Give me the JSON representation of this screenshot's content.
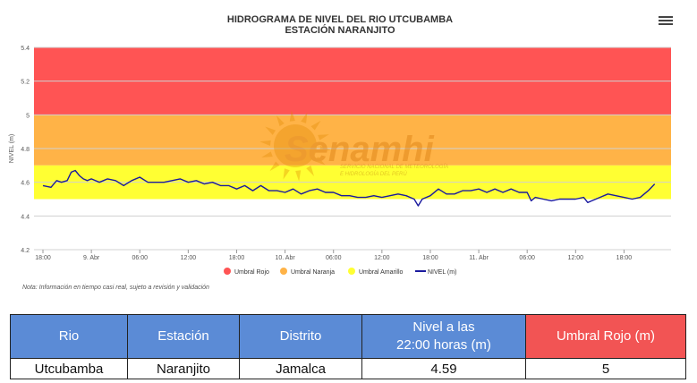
{
  "chart_data": {
    "type": "line",
    "title": "HIDROGRAMA DE NIVEL DEL RIO UTCUBAMBA",
    "subtitle": "ESTACIÓN NARANJITO",
    "ylabel": "NIVEL (m)",
    "xlabel": "",
    "ylim": [
      4.2,
      5.4
    ],
    "yticks": [
      "4.2",
      "4.4",
      "4.6",
      "4.8",
      "5",
      "5.2",
      "5.4"
    ],
    "xticks": [
      {
        "label": "18:00",
        "hour": 0
      },
      {
        "label": "9. Abr",
        "hour": 6
      },
      {
        "label": "06:00",
        "hour": 12
      },
      {
        "label": "12:00",
        "hour": 18
      },
      {
        "label": "18:00",
        "hour": 24
      },
      {
        "label": "10. Abr",
        "hour": 30
      },
      {
        "label": "06:00",
        "hour": 36
      },
      {
        "label": "12:00",
        "hour": 42
      },
      {
        "label": "18:00",
        "hour": 48
      },
      {
        "label": "11. Abr",
        "hour": 54
      },
      {
        "label": "06:00",
        "hour": 60
      },
      {
        "label": "12:00",
        "hour": 66
      },
      {
        "label": "18:00",
        "hour": 72
      }
    ],
    "x_axis_max_hour": 78,
    "bands": [
      {
        "name": "Umbral Rojo",
        "from": 5.0,
        "to": 5.4,
        "color": "#ff5454"
      },
      {
        "name": "Umbral Naranja",
        "from": 4.7,
        "to": 5.0,
        "color": "#ffb347"
      },
      {
        "name": "Umbral Amarillo",
        "from": 4.5,
        "to": 4.7,
        "color": "#ffff33"
      }
    ],
    "series": [
      {
        "name": "NIVEL (m)",
        "color": "#1a1a9e",
        "x": [
          0,
          1,
          1.7,
          2.3,
          3,
          3.5,
          4,
          4.5,
          5,
          5.5,
          6,
          7,
          7.5,
          8,
          9,
          10,
          11,
          12,
          13,
          14,
          15,
          16,
          17,
          18,
          19,
          20,
          21,
          22,
          23,
          24,
          25,
          26,
          27,
          28,
          29,
          30,
          31,
          32,
          33,
          34,
          35,
          36,
          37,
          38,
          39,
          40,
          41,
          42,
          43,
          44,
          45,
          46,
          46.5,
          47,
          48,
          49,
          50,
          51,
          52,
          53,
          54,
          55,
          56,
          57,
          58,
          59,
          60,
          60.5,
          61,
          62,
          63,
          64,
          65,
          66,
          67,
          67.5,
          68,
          69,
          70,
          71,
          72,
          73,
          74,
          75,
          75.8
        ],
        "y": [
          4.58,
          4.57,
          4.61,
          4.6,
          4.61,
          4.66,
          4.67,
          4.64,
          4.62,
          4.61,
          4.62,
          4.6,
          4.61,
          4.62,
          4.61,
          4.58,
          4.61,
          4.63,
          4.6,
          4.6,
          4.6,
          4.61,
          4.62,
          4.6,
          4.61,
          4.59,
          4.6,
          4.58,
          4.58,
          4.56,
          4.58,
          4.55,
          4.58,
          4.55,
          4.55,
          4.54,
          4.56,
          4.53,
          4.55,
          4.56,
          4.54,
          4.54,
          4.52,
          4.52,
          4.51,
          4.51,
          4.52,
          4.51,
          4.52,
          4.53,
          4.52,
          4.5,
          4.46,
          4.5,
          4.52,
          4.56,
          4.53,
          4.53,
          4.55,
          4.55,
          4.56,
          4.54,
          4.56,
          4.54,
          4.56,
          4.54,
          4.54,
          4.49,
          4.51,
          4.5,
          4.49,
          4.5,
          4.5,
          4.5,
          4.51,
          4.48,
          4.49,
          4.51,
          4.53,
          4.52,
          4.51,
          4.5,
          4.51,
          4.55,
          4.59
        ]
      }
    ],
    "legend": [
      "Umbral Rojo",
      "Umbral Naranja",
      "Umbral Amarillo",
      "NIVEL (m)"
    ],
    "legend_placement": "bottom",
    "grid": true
  },
  "watermark": {
    "name": "Senamhi",
    "tagline_1": "SERVICIO NACIONAL DE METEOROLOGÍA",
    "tagline_2": "E HIDROLOGÍA DEL PERÚ"
  },
  "note": "Nota: Información en tiempo casi real, sujeto a revisión y validación",
  "menu_icon": "hamburger-menu-icon",
  "summary_table": {
    "headers": [
      "Rio",
      "Estación",
      "Distrito",
      "Nivel a las",
      "22:00 horas (m)",
      "Umbral Rojo (m)"
    ],
    "row": [
      "Utcubamba",
      "Naranjito",
      "Jamalca",
      "4.59",
      "5"
    ]
  }
}
